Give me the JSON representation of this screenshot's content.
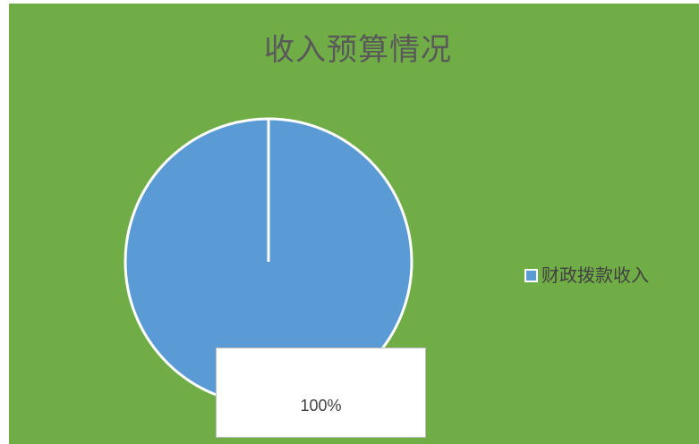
{
  "chart_data": {
    "type": "pie",
    "title": "收入预算情况",
    "categories": [
      "财政拨款收入"
    ],
    "values": [
      100
    ],
    "data_labels": [
      "100%"
    ],
    "legend_position": "right",
    "colors": {
      "background": "#70ad47",
      "slice": "#5b9bd5",
      "slice_border": "#ffffff",
      "title": "#595959",
      "label_text": "#404040"
    }
  }
}
